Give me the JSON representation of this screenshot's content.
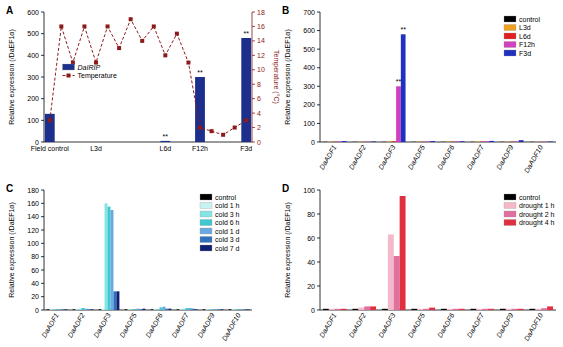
{
  "chart_data": [
    {
      "type": "bar",
      "title": "A",
      "categories": [
        "Field control",
        null,
        null,
        null,
        "L3d",
        null,
        null,
        null,
        null,
        null,
        "L6d",
        null,
        null,
        "F12h",
        null,
        null,
        null,
        "F3d"
      ],
      "series": [
        {
          "name": "DaIRIP",
          "type": "bar",
          "color": "#1c2f8c",
          "values": [
            130,
            null,
            null,
            null,
            null,
            null,
            null,
            null,
            null,
            null,
            5,
            null,
            null,
            300,
            null,
            null,
            null,
            480
          ]
        },
        {
          "name": "Temperature",
          "type": "line",
          "axis": "y2",
          "color": "#8b1a1a",
          "marker": "square",
          "line_style": "dashed",
          "values": [
            3,
            16,
            11,
            16,
            11,
            16,
            13,
            17,
            14,
            16,
            12,
            15,
            11,
            2,
            1.5,
            1,
            2,
            3
          ]
        }
      ],
      "y_label": "Relative expression (/DaEF1α)",
      "y2_label": "Temperature (°C)",
      "ylim": [
        0,
        600
      ],
      "yticks": [
        0,
        100,
        200,
        300,
        400,
        500,
        600
      ],
      "y2lim": [
        0,
        18
      ],
      "y2ticks": [
        0,
        2,
        4,
        6,
        8,
        10,
        12,
        14,
        16,
        18
      ],
      "legend": "center left",
      "annotations": [
        {
          "text": "**",
          "series": 0,
          "index": 10
        },
        {
          "text": "**",
          "series": 0,
          "index": 13
        },
        {
          "text": "**",
          "series": 0,
          "index": 17
        }
      ]
    },
    {
      "type": "bar",
      "title": "B",
      "categories": [
        "DaADF1",
        "DaADF2",
        "DaADF3",
        "DaADF5",
        "DaADF6",
        "DaADF7",
        "DaADF9",
        "DaADF10"
      ],
      "series": [
        {
          "name": "control",
          "color": "#000000",
          "values": [
            1,
            1,
            1,
            1,
            1,
            1,
            1,
            1
          ]
        },
        {
          "name": "L3d",
          "color": "#f0a020",
          "values": [
            2,
            1.5,
            3,
            1.5,
            2,
            3,
            2,
            1
          ]
        },
        {
          "name": "L6d",
          "color": "#e02020",
          "values": [
            1.5,
            1,
            4,
            1,
            1.5,
            2,
            1.5,
            1
          ]
        },
        {
          "name": "F12h",
          "color": "#d040c0",
          "values": [
            3,
            2,
            300,
            3,
            4,
            5,
            3,
            2
          ]
        },
        {
          "name": "F3d",
          "color": "#2030c0",
          "values": [
            5,
            3,
            580,
            5,
            4,
            6,
            10,
            3
          ]
        }
      ],
      "y_label": "Relative expression (/DaEF1α)",
      "ylim": [
        0,
        700
      ],
      "yticks": [
        0,
        100,
        200,
        300,
        400,
        500,
        600,
        700
      ],
      "legend": "upper right",
      "annotations": [
        {
          "text": "**",
          "series": 3,
          "index": 2
        },
        {
          "text": "**",
          "series": 4,
          "index": 2
        }
      ]
    },
    {
      "type": "bar",
      "title": "C",
      "categories": [
        "DaADF1",
        "DaADF2",
        "DaADF3",
        "DaADF5",
        "DaADF6",
        "DaADF7",
        "DaADF9",
        "DaADF10"
      ],
      "series": [
        {
          "name": "control",
          "color": "#000000",
          "values": [
            1,
            1,
            1,
            1,
            1,
            1,
            1,
            1
          ]
        },
        {
          "name": "cold 1 h",
          "color": "#c8f2f2",
          "values": [
            1,
            1,
            2,
            1,
            1,
            1,
            1,
            1
          ]
        },
        {
          "name": "cold 3 h",
          "color": "#86e4e4",
          "values": [
            1,
            2,
            160,
            1,
            1,
            2,
            1,
            1
          ]
        },
        {
          "name": "cold 6 h",
          "color": "#40c8d0",
          "values": [
            1,
            3,
            155,
            1,
            4,
            3,
            1,
            1
          ]
        },
        {
          "name": "cold 1 d",
          "color": "#6aa8e0",
          "values": [
            1,
            2,
            150,
            2,
            5,
            3,
            1,
            1
          ]
        },
        {
          "name": "cold 3 d",
          "color": "#3070c0",
          "values": [
            1,
            1,
            28,
            1,
            2,
            2,
            1,
            1
          ]
        },
        {
          "name": "cold 7 d",
          "color": "#102070",
          "values": [
            1,
            1,
            28,
            2,
            2,
            1,
            1,
            1
          ]
        }
      ],
      "y_label": "Relative expression (/DaEF1α)",
      "ylim": [
        0,
        180
      ],
      "yticks": [
        0,
        20,
        40,
        60,
        80,
        100,
        120,
        140,
        160,
        180
      ],
      "legend": "upper right"
    },
    {
      "type": "bar",
      "title": "D",
      "categories": [
        "DaADF1",
        "DaADF2",
        "DaADF3",
        "DaADF5",
        "DaADF6",
        "DaADF7",
        "DaADF9",
        "DaADF10"
      ],
      "series": [
        {
          "name": "control",
          "color": "#000000",
          "values": [
            1,
            1,
            1,
            1,
            1,
            1,
            1,
            1
          ]
        },
        {
          "name": "drought 1 h",
          "color": "#f4b8c8",
          "values": [
            1,
            2,
            63,
            1,
            1,
            1,
            1,
            1
          ]
        },
        {
          "name": "drought 2 h",
          "color": "#e070a0",
          "values": [
            1,
            3,
            45,
            1,
            1,
            1,
            1,
            1.5
          ]
        },
        {
          "name": "drought 4 h",
          "color": "#e03040",
          "values": [
            1,
            3,
            95,
            2,
            1,
            1,
            1,
            3
          ]
        }
      ],
      "y_label": "Relative expression (/DaEF1α)",
      "ylim": [
        0,
        100
      ],
      "yticks": [
        0,
        20,
        40,
        60,
        80,
        100
      ],
      "legend": "upper right"
    }
  ]
}
